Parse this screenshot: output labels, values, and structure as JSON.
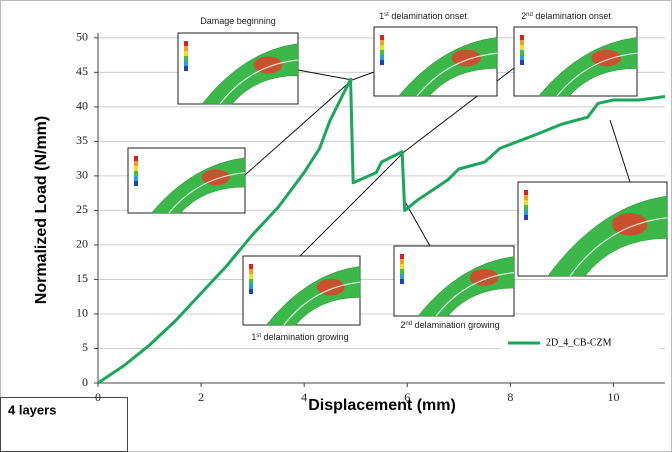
{
  "chart_data": {
    "type": "line",
    "x_label": "Displacement (mm)",
    "y_label": "Normalized Load (N/mm)",
    "series": [
      {
        "name": "2D_4_CB-CZM",
        "color": "#1aa75a",
        "x": [
          0,
          0.5,
          1,
          1.5,
          2,
          2.5,
          3,
          3.5,
          4,
          4.3,
          4.5,
          4.9,
          4.95,
          5.1,
          5.4,
          5.5,
          5.9,
          5.95,
          6.2,
          6.5,
          6.8,
          7,
          7.5,
          7.8,
          8.5,
          9,
          9.5,
          9.7,
          10,
          10.5,
          11
        ],
        "values": [
          0,
          2.5,
          5.5,
          9,
          13,
          17,
          21.5,
          25.5,
          30.5,
          34,
          38,
          44,
          29,
          29.5,
          30.5,
          32,
          33.5,
          25,
          26.5,
          28,
          29.5,
          31,
          32,
          34,
          36,
          37.5,
          38.5,
          40.5,
          41,
          41,
          41.5
        ]
      }
    ],
    "xlim": [
      0,
      11
    ],
    "xticks": [
      0,
      2,
      4,
      6,
      8,
      10
    ],
    "ylim": [
      0,
      50.7
    ],
    "yticks": [
      0,
      5,
      10,
      15,
      20,
      25,
      30,
      35,
      40,
      45,
      50
    ],
    "grid": true,
    "annotations": [
      {
        "label": "Damage beginning"
      },
      {
        "ordinal": "1",
        "suffix": "st",
        "label": " delamination onset"
      },
      {
        "ordinal": "2",
        "suffix": "nd",
        "label": " delamination onset"
      },
      {
        "ordinal": "1",
        "suffix": "st",
        "label": " delamination growing"
      },
      {
        "ordinal": "2",
        "suffix": "nd",
        "label": " delamination growing"
      }
    ],
    "box_label": "4 layers"
  }
}
